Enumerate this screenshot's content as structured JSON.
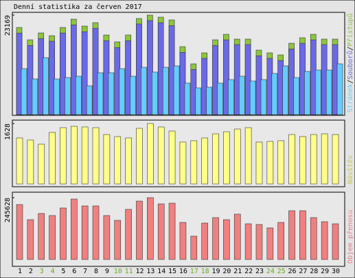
{
  "title": "Denní statistika za červen 2017",
  "chart_data": [
    {
      "type": "bar",
      "legend_separator": "/",
      "ylim": [
        0,
        23169
      ],
      "yticks": [
        23169
      ],
      "series": [
        {
          "name": "Přístupů",
          "color": "#8cc63e",
          "values": [
            20290,
            17417,
            19015,
            18375,
            20290,
            22210,
            20612,
            21411,
            18535,
            16937,
            18535,
            22370,
            23169,
            22690,
            22050,
            15819,
            11824,
            14381,
            17417,
            18695,
            17577,
            17577,
            15020,
            14381,
            13901,
            16618,
            17896,
            18695,
            17577,
            17577
          ]
        },
        {
          "name": "Souborů",
          "color": "#6a6ae8",
          "values": [
            18990,
            16100,
            17700,
            17100,
            19000,
            20900,
            19300,
            20100,
            17200,
            15600,
            17200,
            21100,
            21900,
            21400,
            20700,
            14500,
            10500,
            13100,
            16100,
            17400,
            16300,
            16300,
            13700,
            13100,
            12600,
            15300,
            16600,
            17400,
            16300,
            16300
          ]
        },
        {
          "name": "Stránek",
          "color": "#66ccff",
          "values": [
            10706,
            8309,
            13262,
            8309,
            8629,
            8948,
            6711,
            9747,
            9747,
            10706,
            8948,
            11025,
            9907,
            11025,
            11345,
            7350,
            6232,
            6391,
            7350,
            8149,
            8948,
            7829,
            8149,
            9587,
            11345,
            8629,
            10066,
            10386,
            10386,
            11824
          ]
        }
      ]
    },
    {
      "type": "bar",
      "ylim": [
        0,
        1628
      ],
      "yticks": [
        1628
      ],
      "series": [
        {
          "name": "Návštěv",
          "color": "#ffff88",
          "values": [
            1240,
            1184,
            1073,
            1388,
            1517,
            1554,
            1536,
            1517,
            1332,
            1277,
            1240,
            1499,
            1628,
            1536,
            1425,
            1129,
            1166,
            1240,
            1351,
            1406,
            1480,
            1517,
            1129,
            1147,
            1166,
            1332,
            1277,
            1332,
            1351,
            1332
          ]
        }
      ]
    },
    {
      "type": "bar",
      "ylim": [
        0,
        245628
      ],
      "yticks": [
        245628
      ],
      "series": [
        {
          "name": "Objem přenosu",
          "color": "#f08080",
          "values": [
            218336,
            158294,
            182856,
            174669,
            204690,
            240170,
            212878,
            212878,
            174669,
            155565,
            199232,
            231982,
            245628,
            221065,
            223794,
            147377,
            92793,
            144648,
            166481,
            158294,
            180127,
            141918,
            139189,
            125543,
            147377,
            193773,
            193773,
            166481,
            150105,
            141918
          ]
        }
      ],
      "categories": [
        "1",
        "2",
        "3",
        "4",
        "5",
        "6",
        "7",
        "8",
        "9",
        "10",
        "11",
        "12",
        "13",
        "14",
        "15",
        "16",
        "17",
        "18",
        "19",
        "20",
        "21",
        "22",
        "23",
        "24",
        "25",
        "26",
        "27",
        "28",
        "29",
        "30"
      ],
      "category_colors": [
        "#000000",
        "#000000",
        "#66a822",
        "#66a822",
        "#000000",
        "#000000",
        "#000000",
        "#000000",
        "#000000",
        "#66a822",
        "#66a822",
        "#000000",
        "#000000",
        "#000000",
        "#000000",
        "#000000",
        "#66a822",
        "#66a822",
        "#000000",
        "#000000",
        "#000000",
        "#000000",
        "#000000",
        "#66a822",
        "#66a822",
        "#000000",
        "#000000",
        "#000000",
        "#000000",
        "#000000"
      ]
    }
  ]
}
